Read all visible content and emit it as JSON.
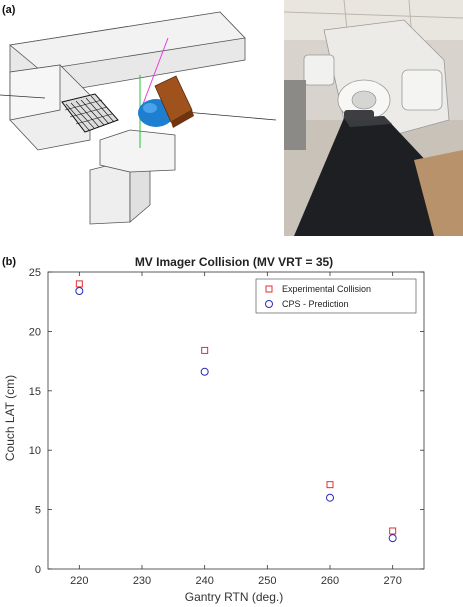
{
  "panel_a": {
    "label": "(a)"
  },
  "panel_b": {
    "label": "(b)"
  },
  "colors": {
    "experimental": "#e0312f",
    "prediction": "#2a2ab8",
    "sphere": "#1e7fd0",
    "imager": "#a0521d",
    "laser_magenta": "#e83bd9",
    "laser_green": "#22c33a"
  },
  "chart_data": {
    "type": "scatter",
    "title": "MV Imager Collision (MV VRT = 35)",
    "xlabel": "Gantry RTN (deg.)",
    "ylabel": "Couch LAT (cm)",
    "xlim": [
      215,
      275
    ],
    "ylim": [
      0,
      25
    ],
    "xticks": [
      220,
      230,
      240,
      250,
      260,
      270
    ],
    "yticks": [
      0,
      5,
      10,
      15,
      20,
      25
    ],
    "legend_position": "top-right",
    "grid": false,
    "series": [
      {
        "name": "Experimental Collision",
        "marker": "square",
        "x": [
          220,
          240,
          260,
          270
        ],
        "y": [
          24.0,
          18.4,
          7.1,
          3.2
        ]
      },
      {
        "name": "CPS - Prediction",
        "marker": "circle",
        "x": [
          220,
          240,
          260,
          270
        ],
        "y": [
          23.4,
          16.6,
          6.0,
          2.6
        ]
      }
    ]
  }
}
